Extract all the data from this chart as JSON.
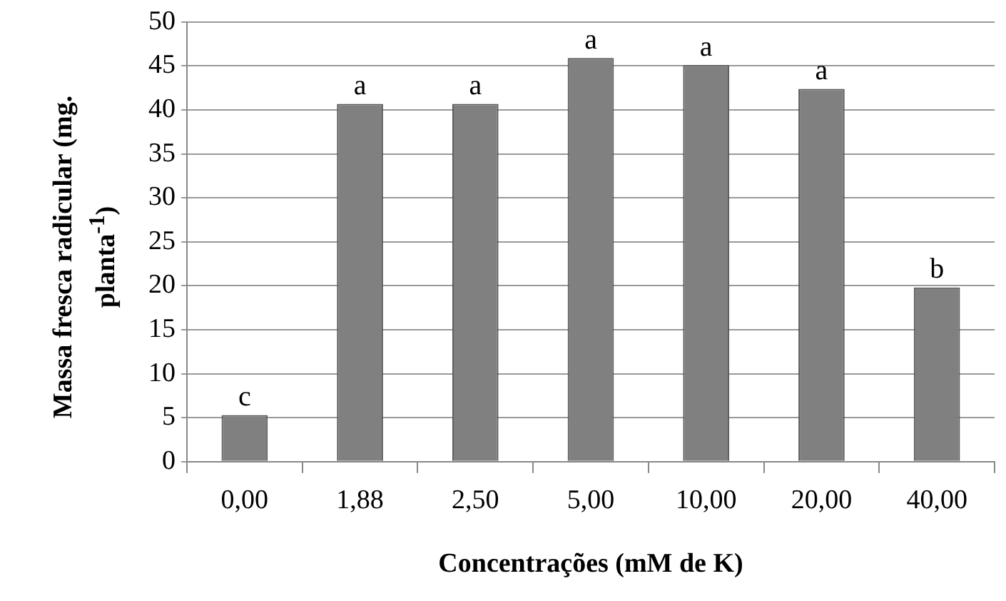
{
  "chart_data": {
    "type": "bar",
    "xlabel": "Concentrações (mM de K)",
    "ylabel": "Massa fresca radicular (mg. planta$^{-1}$)",
    "categories": [
      "0,00",
      "1,88",
      "2,50",
      "5,00",
      "10,00",
      "20,00",
      "40,00"
    ],
    "values": [
      5.3,
      40.7,
      40.7,
      45.9,
      45.1,
      42.4,
      19.8
    ],
    "color": "#808080",
    "ylim": [
      0,
      50
    ],
    "yticks": [
      0,
      5,
      10,
      15,
      20,
      25,
      30,
      35,
      40,
      45,
      50
    ],
    "grid": "y",
    "legend": false,
    "annotations": [
      {
        "text": "c",
        "x": "0,00",
        "y": 5.3
      },
      {
        "text": "a",
        "x": "1,88",
        "y": 40.7
      },
      {
        "text": "a",
        "x": "2,50",
        "y": 40.7
      },
      {
        "text": "a",
        "x": "5,00",
        "y": 45.9
      },
      {
        "text": "a",
        "x": "10,00",
        "y": 45.1
      },
      {
        "text": "a",
        "x": "20,00",
        "y": 42.4
      },
      {
        "text": "b",
        "x": "40,00",
        "y": 19.8
      }
    ]
  }
}
